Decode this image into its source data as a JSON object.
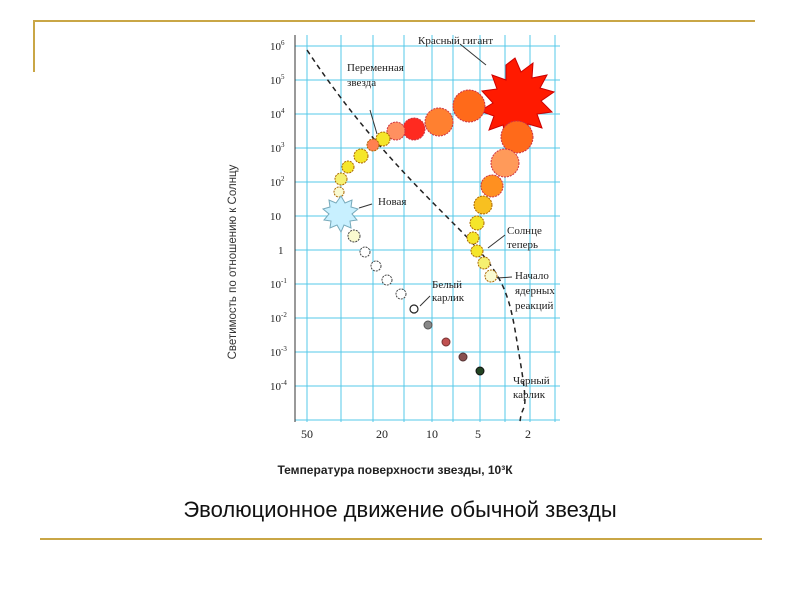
{
  "slide": {
    "caption": "Эволюционное движение обычной звезды",
    "accent_color": "#c9a646"
  },
  "diagram": {
    "y_axis_label": "Светимость по отношению к Солнцу",
    "x_axis_label": "Температура поверхности звезды, 10³К",
    "y_ticks": [
      {
        "base": "10",
        "exp": "6"
      },
      {
        "base": "10",
        "exp": "5"
      },
      {
        "base": "10",
        "exp": "4"
      },
      {
        "base": "10",
        "exp": "3"
      },
      {
        "base": "10",
        "exp": "2"
      },
      {
        "base": "10",
        "exp": ""
      },
      {
        "base": "1",
        "exp": ""
      },
      {
        "base": "10",
        "exp": "-1"
      },
      {
        "base": "10",
        "exp": "-2"
      },
      {
        "base": "10",
        "exp": "-3"
      },
      {
        "base": "10",
        "exp": "-4"
      }
    ],
    "x_ticks": [
      "50",
      "20",
      "10",
      "5",
      "2"
    ],
    "annotations": {
      "red_giant": "Красный гигант",
      "variable_star_1": "Переменная",
      "variable_star_2": "звезда",
      "nova": "Новая",
      "sun_now_1": "Солнце",
      "sun_now_2": "теперь",
      "nuclear_start_1": "Начало",
      "nuclear_start_2": "ядерных",
      "nuclear_start_3": "реакций",
      "white_dwarf_1": "Белый",
      "white_dwarf_2": "карлик",
      "black_dwarf_1": "Черный",
      "black_dwarf_2": "карлик"
    },
    "colors": {
      "grid": "#55c8e8",
      "red_giant": "#ff1a00",
      "orange": "#ff6a1a",
      "yellow": "#f5e62a",
      "nova": "#c8f0ff",
      "white_dwarf": "#ffffff"
    }
  }
}
